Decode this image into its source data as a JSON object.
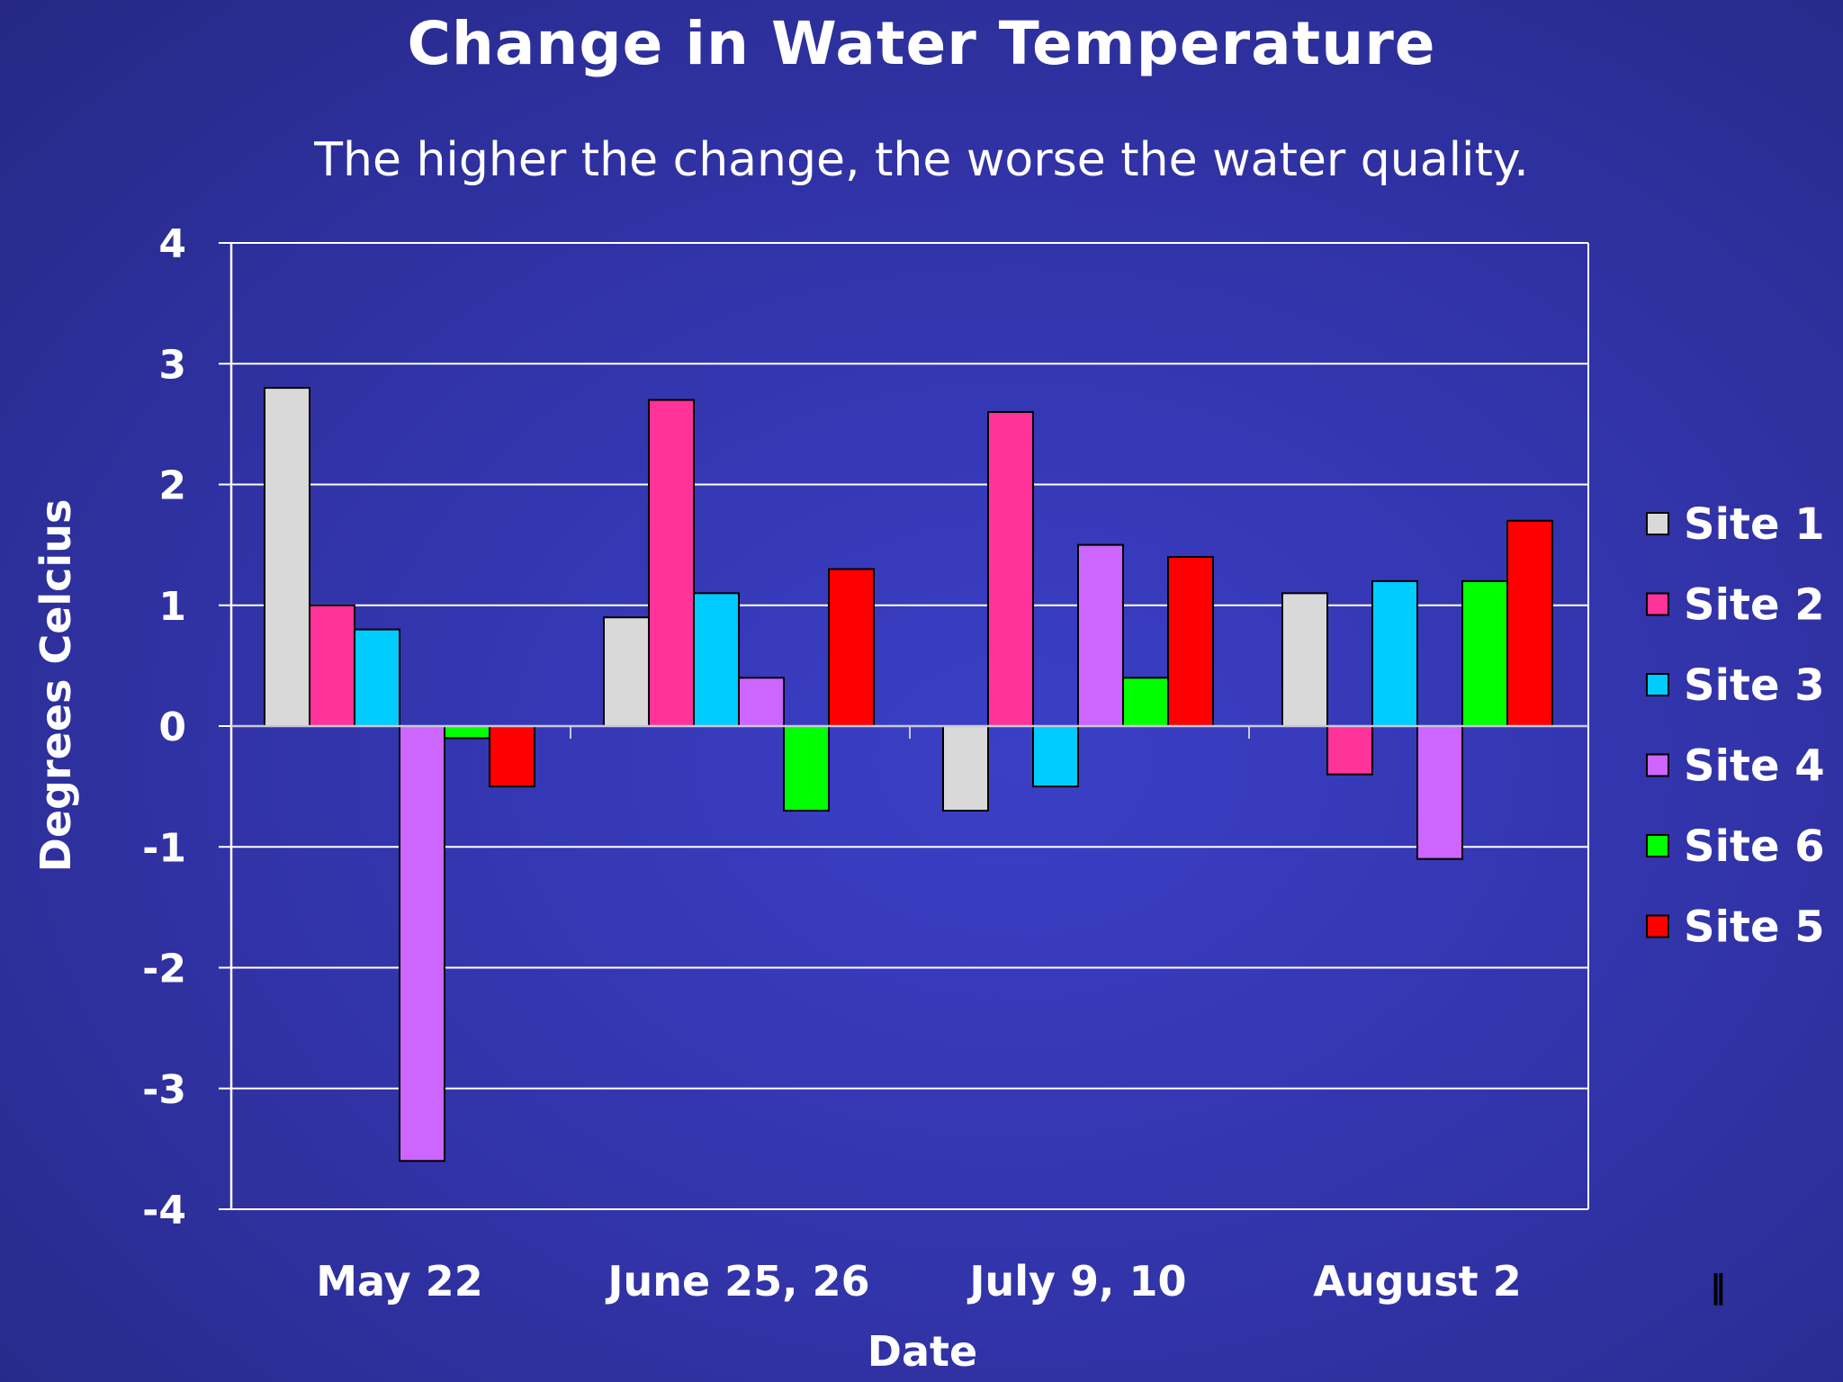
{
  "chart_data": {
    "type": "bar",
    "title": "Change in Water Temperature",
    "subtitle": "The higher the change, the worse the water quality.",
    "xlabel": "Date",
    "ylabel": "Degrees Celcius",
    "ylim": [
      -4,
      4
    ],
    "yticks": [
      4,
      3,
      2,
      1,
      0,
      -1,
      -2,
      -3,
      -4
    ],
    "grid": true,
    "legend_position": "right",
    "categories": [
      "May 22",
      "June 25, 26",
      "July 9, 10",
      "August 2"
    ],
    "series": [
      {
        "name": "Site 1",
        "color": "#d9d9d9",
        "values": [
          2.8,
          0.9,
          -0.7,
          1.1
        ]
      },
      {
        "name": "Site 2",
        "color": "#ff3399",
        "values": [
          1.0,
          2.7,
          2.6,
          -0.4
        ]
      },
      {
        "name": "Site 3",
        "color": "#00ccff",
        "values": [
          0.8,
          1.1,
          -0.5,
          1.2
        ]
      },
      {
        "name": "Site 4",
        "color": "#cc66ff",
        "values": [
          -3.6,
          0.4,
          1.5,
          -1.1
        ]
      },
      {
        "name": "Site 6",
        "color": "#00ff00",
        "values": [
          -0.1,
          -0.7,
          0.4,
          1.2
        ]
      },
      {
        "name": "Site 5",
        "color": "#ff0000",
        "values": [
          -0.5,
          1.3,
          1.4,
          1.7
        ]
      }
    ]
  }
}
